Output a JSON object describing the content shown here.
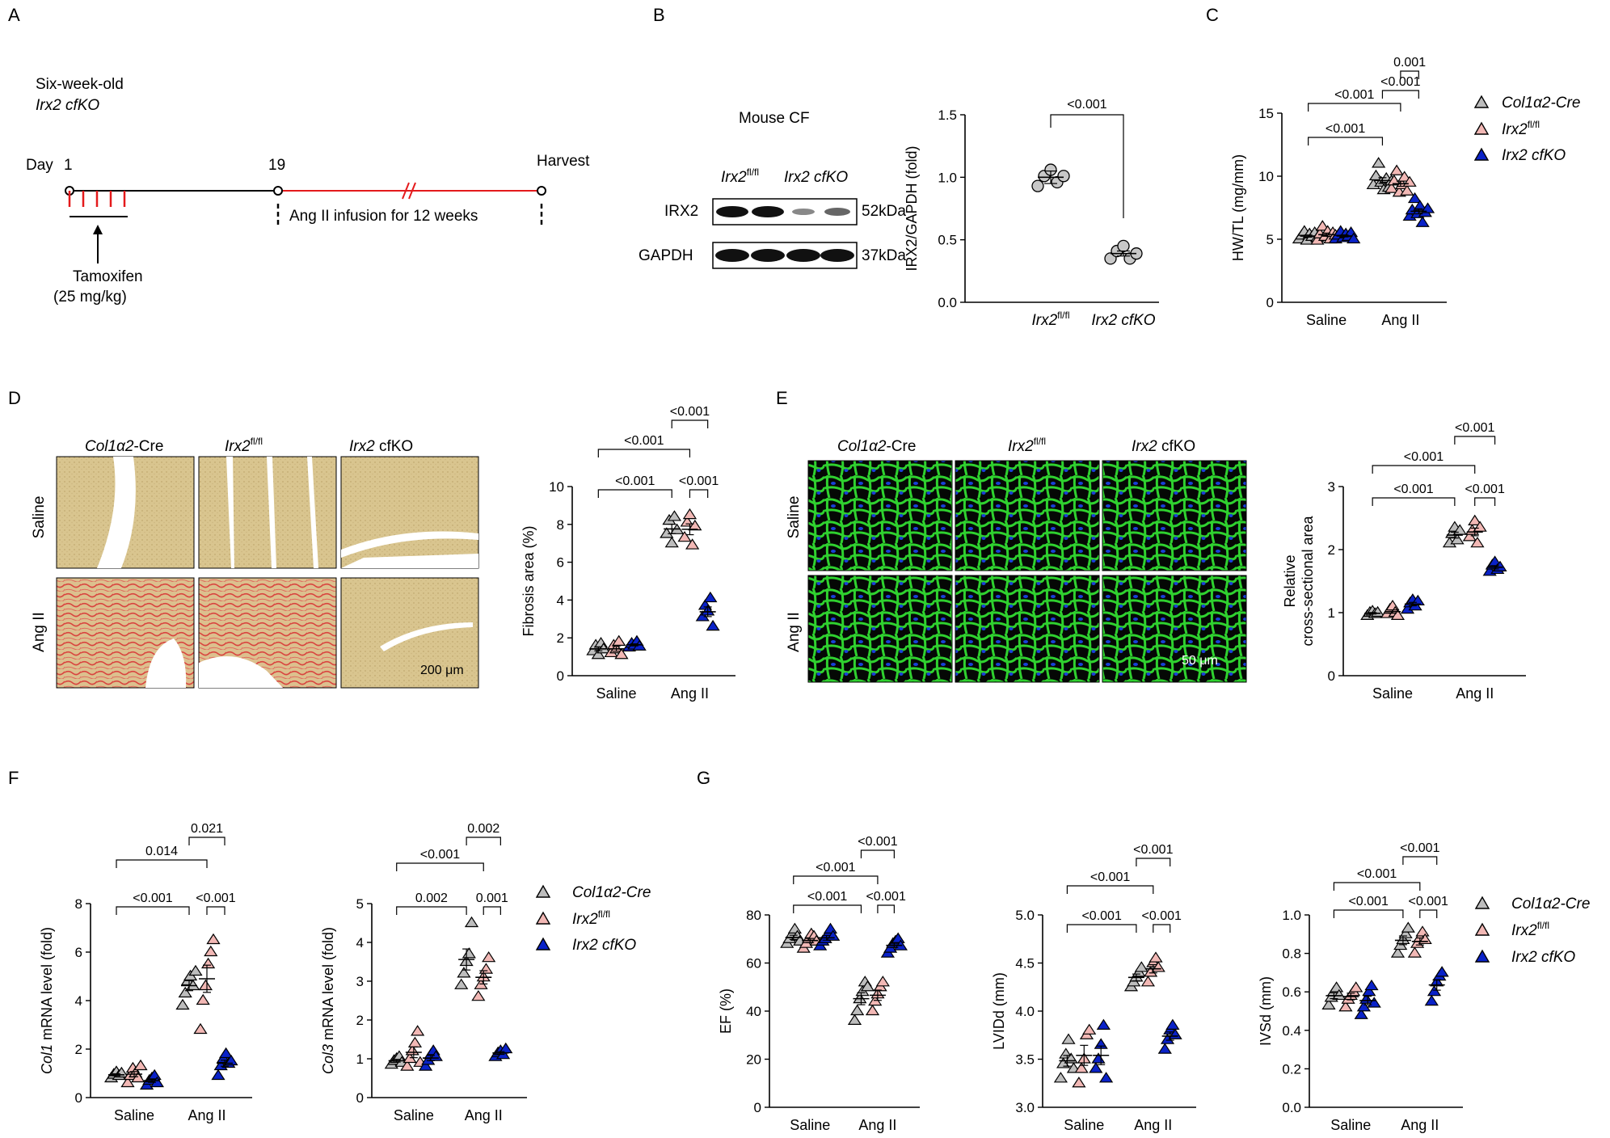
{
  "panel_labels": [
    "A",
    "B",
    "C",
    "D",
    "E",
    "F",
    "G"
  ],
  "colors": {
    "cre": "#bdbdbd",
    "flfl": "#f2b8b5",
    "cfko": "#0a22c8",
    "timeline_red": "#e41a1c",
    "fibrosis_tissue": "#d9c58f",
    "fibrosis_stain": "#d9443f",
    "wga_stain": "#2fd12f",
    "nuclei": "#1840d8"
  },
  "icons": {
    "cre": "triangle-open-gray",
    "flfl": "triangle-pink",
    "cfko": "triangle-filled-blue"
  },
  "legend": {
    "cre": "Col1α2-Cre",
    "flfl_base": "Irx2",
    "flfl_sup": "fl/fl",
    "cfko": "Irx2 cfKO"
  },
  "panel_a": {
    "title_line1": "Six-week-old",
    "title_line2": "Irx2 cfKO",
    "day_label": "Day",
    "day_start": "1",
    "day_mid": "19",
    "harvest": "Harvest",
    "ang_text": "Ang II infusion for 12 weeks",
    "tam_line1": "Tamoxifen",
    "tam_line2": "(25 mg/kg)"
  },
  "panel_b": {
    "blot_title": "Mouse CF",
    "lane_flfl_base": "Irx2",
    "lane_flfl_sup": "fl/fl",
    "lane_cfko": "Irx2 cfKO",
    "row1_label": "IRX2",
    "row1_kda": "52kDa",
    "row2_label": "GAPDH",
    "row2_kda": "37kDa"
  },
  "groups": {
    "saline": "Saline",
    "ang": "Ang II"
  },
  "chart_data": [
    {
      "id": "B-quant",
      "type": "scatter",
      "ylabel": "IRX2/GAPDH (fold)",
      "ylim": [
        0,
        1.5
      ],
      "yticks": [
        "0.0",
        "0.5",
        "1.0",
        "1.5"
      ],
      "categories": [
        "Irx2 fl/fl",
        "Irx2 cfKO"
      ],
      "series": [
        {
          "values": [
            0.93,
            1.01,
            1.06,
            0.96,
            1.01
          ],
          "mean": 1.0,
          "sem": 0.05
        },
        {
          "values": [
            0.35,
            0.41,
            0.45,
            0.35,
            0.39
          ],
          "mean": 0.39,
          "sem": 0.02
        }
      ],
      "comparisons": [
        {
          "label": "<0.001"
        }
      ]
    },
    {
      "id": "C",
      "type": "scatter",
      "ylabel": "HW/TL (mg/mm)",
      "ylim": [
        0,
        15
      ],
      "yticks": [
        "0",
        "5",
        "10",
        "15"
      ],
      "groups": [
        "Saline",
        "Ang II"
      ],
      "series": [
        {
          "name": "Col1α2-Cre",
          "saline": [
            5.0,
            5.3,
            5.6,
            4.9,
            5.4,
            5.2,
            5.5,
            5.1
          ],
          "ang": [
            9.3,
            10.0,
            11.0,
            9.5,
            8.9,
            9.8,
            9.1,
            9.6
          ]
        },
        {
          "name": "Irx2fl/fl",
          "saline": [
            4.9,
            5.4,
            6.0,
            5.2,
            5.6,
            5.0,
            5.5,
            5.3
          ],
          "ang": [
            9.0,
            9.6,
            10.4,
            8.7,
            9.3,
            9.9,
            8.8,
            9.5
          ]
        },
        {
          "name": "Irx2 cfKO",
          "saline": [
            5.0,
            5.3,
            5.6,
            5.1,
            5.4,
            5.2,
            5.5,
            5.0
          ],
          "ang": [
            6.8,
            7.3,
            8.2,
            7.0,
            7.6,
            6.3,
            7.1,
            7.4
          ]
        }
      ],
      "comparisons": [
        "<0.001",
        "<0.001",
        "<0.001",
        "0.001"
      ]
    },
    {
      "id": "D-quant",
      "type": "scatter",
      "ylabel": "Fibrosis area (%)",
      "ylim": [
        0,
        10
      ],
      "yticks": [
        "0",
        "2",
        "4",
        "6",
        "8",
        "10"
      ],
      "groups": [
        "Saline",
        "Ang II"
      ],
      "series": [
        {
          "name": "Col1α2-Cre",
          "saline": [
            1.3,
            1.6,
            1.1,
            1.7,
            1.4
          ],
          "ang": [
            7.5,
            8.2,
            7.0,
            8.4,
            7.7
          ]
        },
        {
          "name": "Irx2fl/fl",
          "saline": [
            1.2,
            1.6,
            1.4,
            1.8,
            1.1
          ],
          "ang": [
            7.3,
            8.1,
            8.5,
            6.9,
            7.9
          ]
        },
        {
          "name": "Irx2 cfKO",
          "saline": [
            1.5,
            1.7,
            1.6,
            1.8,
            1.55
          ],
          "ang": [
            3.1,
            3.7,
            3.4,
            4.1,
            2.6
          ]
        }
      ],
      "comparisons": [
        "<0.001",
        "<0.001",
        "<0.001",
        "<0.001"
      ]
    },
    {
      "id": "E-quant",
      "type": "scatter",
      "ylabel_line1": "Relative",
      "ylabel_line2": "cross-sectional area",
      "ylim": [
        0,
        3
      ],
      "yticks": [
        "0",
        "1",
        "2",
        "3"
      ],
      "groups": [
        "Saline",
        "Ang II"
      ],
      "series": [
        {
          "name": "Col1α2-Cre",
          "saline": [
            0.95,
            1.0,
            1.02,
            0.98,
            1.0
          ],
          "ang": [
            2.1,
            2.25,
            2.35,
            2.15,
            2.3
          ]
        },
        {
          "name": "Irx2fl/fl",
          "saline": [
            0.98,
            1.05,
            1.1,
            1.0,
            0.95
          ],
          "ang": [
            2.2,
            2.3,
            2.45,
            2.1,
            2.35
          ]
        },
        {
          "name": "Irx2 cfKO",
          "saline": [
            1.05,
            1.15,
            1.2,
            1.1,
            1.18
          ],
          "ang": [
            1.65,
            1.75,
            1.8,
            1.68,
            1.72
          ]
        }
      ],
      "comparisons": [
        "<0.001",
        "<0.001",
        "<0.001",
        "<0.001"
      ]
    },
    {
      "id": "F-col1",
      "type": "scatter",
      "ylabel_italic": "Col1",
      "ylabel_rest": " mRNA level (fold)",
      "ylim": [
        0,
        8
      ],
      "yticks": [
        "0",
        "2",
        "4",
        "6",
        "8"
      ],
      "groups": [
        "Saline",
        "Ang II"
      ],
      "series": [
        {
          "name": "Col1α2-Cre",
          "saline": [
            0.8,
            0.95,
            1.05,
            0.9,
            1.0
          ],
          "ang": [
            3.8,
            4.3,
            4.8,
            5.0,
            4.6,
            5.2
          ]
        },
        {
          "name": "Irx2fl/fl",
          "saline": [
            0.6,
            0.9,
            1.2,
            1.0,
            0.8,
            1.3
          ],
          "ang": [
            2.8,
            4.0,
            4.6,
            5.5,
            6.0,
            6.5
          ]
        },
        {
          "name": "Irx2 cfKO",
          "saline": [
            0.5,
            0.7,
            0.8,
            0.9,
            0.6
          ],
          "ang": [
            0.9,
            1.3,
            1.6,
            1.8,
            1.4,
            1.5
          ]
        }
      ],
      "comparisons": [
        "<0.001",
        "0.014",
        "0.021",
        "<0.001"
      ]
    },
    {
      "id": "F-col3",
      "type": "scatter",
      "ylabel_italic": "Col3",
      "ylabel_rest": " mRNA level (fold)",
      "ylim": [
        0,
        5
      ],
      "yticks": [
        "0",
        "1",
        "2",
        "3",
        "4",
        "5"
      ],
      "groups": [
        "Saline",
        "Ang II"
      ],
      "series": [
        {
          "name": "Col1α2-Cre",
          "saline": [
            0.85,
            0.95,
            1.0,
            1.05,
            0.9
          ],
          "ang": [
            2.9,
            3.2,
            3.5,
            3.7,
            4.5
          ]
        },
        {
          "name": "Irx2fl/fl",
          "saline": [
            0.8,
            1.0,
            1.2,
            1.4,
            1.7,
            0.9
          ],
          "ang": [
            2.6,
            2.9,
            3.1,
            3.3,
            3.6
          ]
        },
        {
          "name": "Irx2 cfKO",
          "saline": [
            0.8,
            0.95,
            1.1,
            1.2,
            1.05
          ],
          "ang": [
            1.05,
            1.15,
            1.2,
            1.1,
            1.25
          ]
        }
      ],
      "comparisons": [
        "0.002",
        "<0.001",
        "0.002",
        "0.001"
      ]
    },
    {
      "id": "G-ef",
      "type": "scatter",
      "ylabel": "EF (%)",
      "ylim": [
        0,
        80
      ],
      "yticks": [
        "0",
        "20",
        "40",
        "60",
        "80"
      ],
      "groups": [
        "Saline",
        "Ang II"
      ],
      "series": [
        {
          "name": "Col1α2-Cre",
          "saline": [
            68,
            70,
            72,
            74,
            71,
            69
          ],
          "ang": [
            36,
            40,
            45,
            48,
            52,
            50
          ]
        },
        {
          "name": "Irx2fl/fl",
          "saline": [
            66,
            68,
            70,
            72,
            71,
            69
          ],
          "ang": [
            40,
            44,
            47,
            50,
            52
          ]
        },
        {
          "name": "Irx2 cfKO",
          "saline": [
            67,
            69,
            70,
            72,
            74,
            71
          ],
          "ang": [
            64,
            66,
            68,
            69,
            70,
            67
          ]
        }
      ],
      "comparisons": [
        "<0.001",
        "<0.001",
        "<0.001",
        "<0.001"
      ]
    },
    {
      "id": "G-lvidd",
      "type": "scatter",
      "ylabel": "LVIDd (mm)",
      "ylim": [
        3.0,
        5.0
      ],
      "yticks": [
        "3.0",
        "3.5",
        "4.0",
        "4.5",
        "5.0"
      ],
      "groups": [
        "Saline",
        "Ang II"
      ],
      "series": [
        {
          "name": "Col1α2-Cre",
          "saline": [
            3.3,
            3.45,
            3.55,
            3.7,
            3.5,
            3.4
          ],
          "ang": [
            4.25,
            4.3,
            4.35,
            4.4,
            4.45
          ]
        },
        {
          "name": "Irx2fl/fl",
          "saline": [
            3.25,
            3.4,
            3.5,
            3.75,
            3.8
          ],
          "ang": [
            4.3,
            4.4,
            4.5,
            4.55,
            4.45
          ]
        },
        {
          "name": "Irx2 cfKO",
          "saline": [
            3.4,
            3.5,
            3.65,
            3.85,
            3.3
          ],
          "ang": [
            3.6,
            3.7,
            3.8,
            3.85,
            3.75
          ]
        }
      ],
      "comparisons": [
        "<0.001",
        "<0.001",
        "<0.001",
        "<0.001"
      ]
    },
    {
      "id": "G-ivsd",
      "type": "scatter",
      "ylabel": "IVSd (mm)",
      "ylim": [
        0.0,
        1.0
      ],
      "yticks": [
        "0.0",
        "0.2",
        "0.4",
        "0.6",
        "0.8",
        "1.0"
      ],
      "groups": [
        "Saline",
        "Ang II"
      ],
      "series": [
        {
          "name": "Col1α2-Cre",
          "saline": [
            0.53,
            0.57,
            0.6,
            0.62,
            0.58
          ],
          "ang": [
            0.8,
            0.84,
            0.87,
            0.9,
            0.93
          ]
        },
        {
          "name": "Irx2fl/fl",
          "saline": [
            0.52,
            0.56,
            0.58,
            0.6,
            0.62
          ],
          "ang": [
            0.8,
            0.85,
            0.88,
            0.91,
            0.87
          ]
        },
        {
          "name": "Irx2 cfKO",
          "saline": [
            0.48,
            0.52,
            0.56,
            0.6,
            0.63,
            0.54
          ],
          "ang": [
            0.55,
            0.6,
            0.65,
            0.68,
            0.7
          ]
        }
      ],
      "comparisons": [
        "<0.001",
        "<0.001",
        "<0.001",
        "<0.001"
      ]
    }
  ],
  "panel_d": {
    "col1_base": "Col1α2",
    "col1_rest": "-Cre",
    "col2_base": "Irx2",
    "col2_sup": "fl/fl",
    "col3_base": "Irx2",
    "col3_rest": " cfKO",
    "row1": "Saline",
    "row2": "Ang II",
    "scale": "200 μm"
  },
  "panel_e": {
    "col1_base": "Col1α2",
    "col1_rest": "-Cre",
    "col2_base": "Irx2",
    "col2_sup": "fl/fl",
    "col3_base": "Irx2",
    "col3_rest": " cfKO",
    "row1": "Saline",
    "row2": "Ang II",
    "scale": "50 μm"
  }
}
